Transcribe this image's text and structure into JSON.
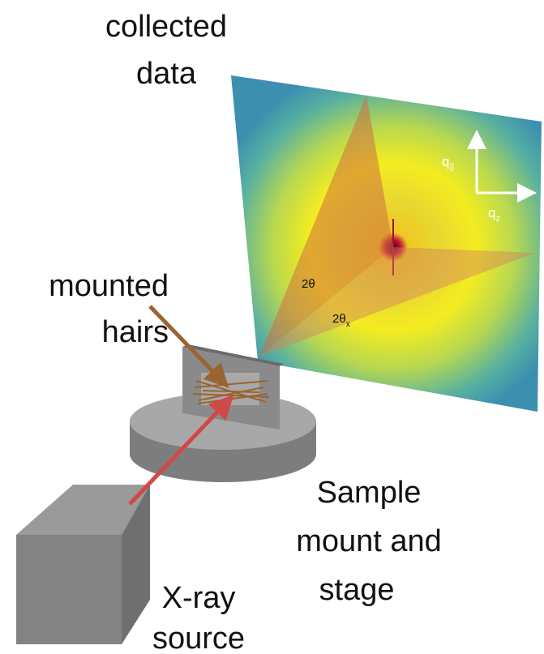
{
  "labels": {
    "collected_data": [
      "collected",
      "data"
    ],
    "mounted_hairs": [
      "mounted",
      "hairs"
    ],
    "sample_stage": [
      "Sample",
      "mount and",
      "stage"
    ],
    "xray_source": [
      "X-ray",
      "source"
    ]
  },
  "angles": {
    "two_theta": "2θ",
    "two_theta_x": {
      "main": "2θ",
      "sub": "x"
    }
  },
  "axes": {
    "q_parallel": {
      "main": "q",
      "sub": "||"
    },
    "q_z": {
      "main": "q",
      "sub": "z"
    }
  }
}
